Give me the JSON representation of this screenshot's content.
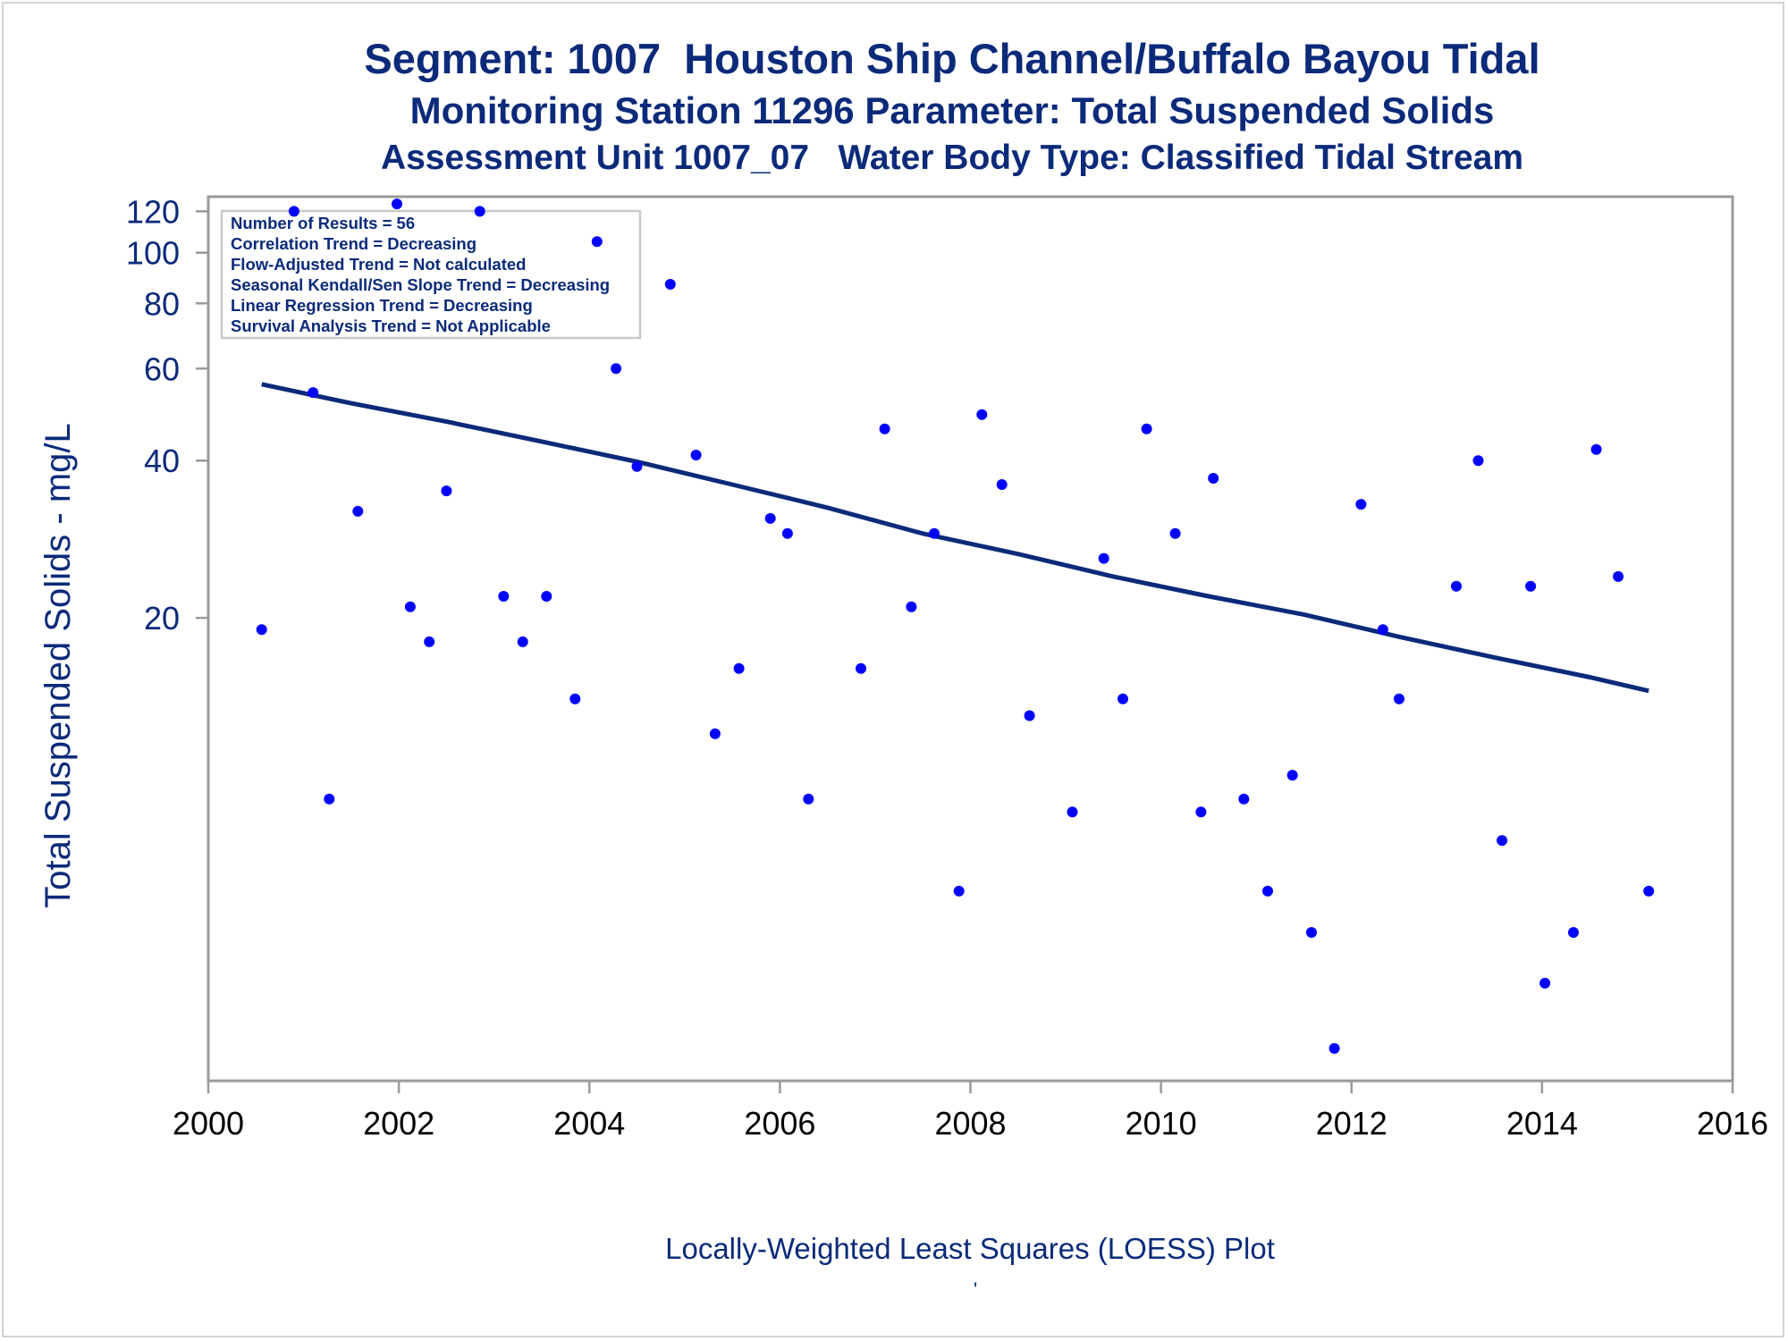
{
  "titles": {
    "line1": "Segment: 1007  Houston Ship Channel/Buffalo Bayou Tidal",
    "line2": "Monitoring Station 11296 Parameter: Total Suspended Solids",
    "line3": "Assessment Unit 1007_07   Water Body Type: Classified Tidal Stream"
  },
  "footnote": "Locally-Weighted Least Squares (LOESS) Plot",
  "footnote_mark": "'",
  "colors": {
    "text": "#0b2a7a",
    "points": "#0000ff",
    "line": "#0b2a7a",
    "axis": "#9a9a9a"
  },
  "chart_data": {
    "type": "scatter",
    "title": "Segment: 1007  Houston Ship Channel/Buffalo Bayou Tidal",
    "xlabel": "",
    "ylabel": "Total Suspended Solids - mg/L",
    "x_scale": "linear",
    "y_scale": "log",
    "xlim": [
      2000,
      2016
    ],
    "ylim": [
      2.6,
      128
    ],
    "x_ticks": [
      2000,
      2002,
      2004,
      2006,
      2008,
      2010,
      2012,
      2014,
      2016
    ],
    "y_ticks": [
      20,
      40,
      60,
      80,
      100,
      120
    ],
    "grid": false,
    "legend_placement": "top-left",
    "stats_box": [
      "Number of Results = 56",
      "Correlation Trend = Decreasing",
      "Flow-Adjusted Trend = Not calculated",
      "Seasonal Kendall/Sen Slope Trend = Decreasing",
      "Linear Regression Trend = Decreasing",
      "Survival Analysis Trend = Not Applicable"
    ],
    "series": [
      {
        "type": "scatter",
        "points": [
          [
            2000.56,
            19
          ],
          [
            2000.9,
            120
          ],
          [
            2001.1,
            54
          ],
          [
            2001.27,
            9
          ],
          [
            2001.57,
            32
          ],
          [
            2001.98,
            124
          ],
          [
            2002.12,
            21
          ],
          [
            2002.32,
            18
          ],
          [
            2002.5,
            35
          ],
          [
            2002.85,
            120
          ],
          [
            2003.1,
            22
          ],
          [
            2003.3,
            18
          ],
          [
            2003.55,
            22
          ],
          [
            2003.85,
            14
          ],
          [
            2004.08,
            105
          ],
          [
            2004.28,
            60
          ],
          [
            2004.5,
            39
          ],
          [
            2004.85,
            87
          ],
          [
            2005.12,
            41
          ],
          [
            2005.32,
            12
          ],
          [
            2005.57,
            16
          ],
          [
            2005.9,
            31
          ],
          [
            2006.08,
            29
          ],
          [
            2006.3,
            9
          ],
          [
            2006.85,
            16
          ],
          [
            2007.1,
            46
          ],
          [
            2007.38,
            21
          ],
          [
            2007.62,
            29
          ],
          [
            2007.88,
            6
          ],
          [
            2008.12,
            49
          ],
          [
            2008.33,
            36
          ],
          [
            2008.62,
            13
          ],
          [
            2009.07,
            8.5
          ],
          [
            2009.4,
            26
          ],
          [
            2009.6,
            14
          ],
          [
            2009.85,
            46
          ],
          [
            2010.15,
            29
          ],
          [
            2010.42,
            8.5
          ],
          [
            2010.55,
            37
          ],
          [
            2010.87,
            9
          ],
          [
            2011.12,
            6
          ],
          [
            2011.38,
            10
          ],
          [
            2011.58,
            5
          ],
          [
            2011.82,
            3
          ],
          [
            2012.1,
            33
          ],
          [
            2012.33,
            19
          ],
          [
            2012.5,
            14
          ],
          [
            2013.1,
            23
          ],
          [
            2013.33,
            40
          ],
          [
            2013.58,
            7.5
          ],
          [
            2013.88,
            23
          ],
          [
            2014.03,
            4
          ],
          [
            2014.33,
            5
          ],
          [
            2014.57,
            42
          ],
          [
            2014.8,
            24
          ],
          [
            2015.12,
            6
          ]
        ]
      },
      {
        "type": "line",
        "points": [
          [
            2000.56,
            56
          ],
          [
            2001.5,
            51.5
          ],
          [
            2002.5,
            47.5
          ],
          [
            2003.5,
            43.5
          ],
          [
            2004.5,
            39.8
          ],
          [
            2005.5,
            36
          ],
          [
            2006.5,
            32.5
          ],
          [
            2007.5,
            29
          ],
          [
            2008.5,
            26.5
          ],
          [
            2009.5,
            24
          ],
          [
            2010.5,
            22
          ],
          [
            2011.5,
            20.3
          ],
          [
            2012.5,
            18.4
          ],
          [
            2013.5,
            16.8
          ],
          [
            2014.5,
            15.4
          ],
          [
            2015.12,
            14.5
          ]
        ]
      }
    ]
  }
}
